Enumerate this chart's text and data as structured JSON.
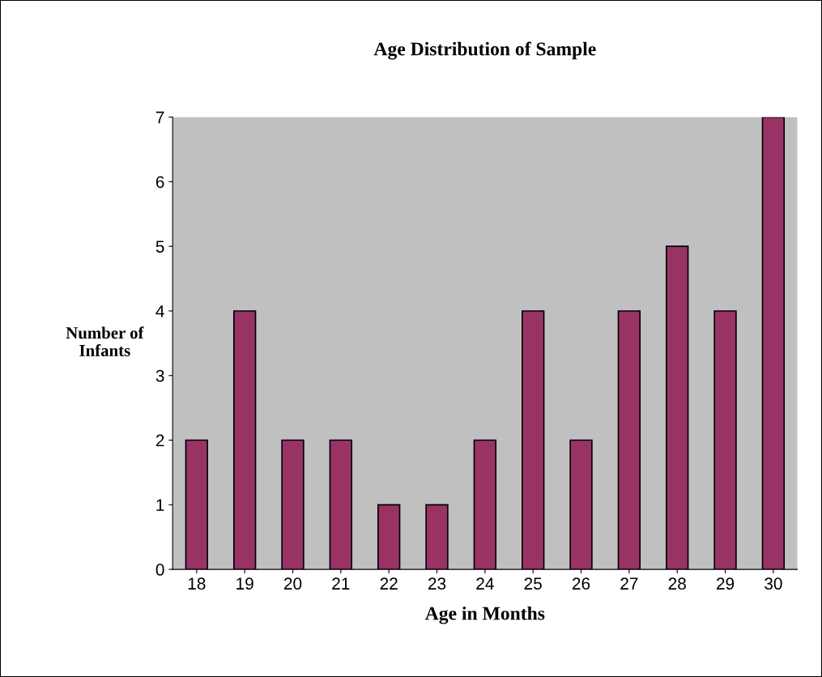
{
  "chart_data": {
    "type": "bar",
    "title": "Age Distribution of Sample",
    "xlabel": "Age in Months",
    "ylabel": "Number of\nInfants",
    "categories": [
      "18",
      "19",
      "20",
      "21",
      "22",
      "23",
      "24",
      "25",
      "26",
      "27",
      "28",
      "29",
      "30"
    ],
    "values": [
      2,
      4,
      2,
      2,
      1,
      1,
      2,
      4,
      2,
      4,
      5,
      4,
      7
    ],
    "color": "#993366",
    "ylim": [
      0,
      7
    ],
    "yticks": [
      0,
      1,
      2,
      3,
      4,
      5,
      6,
      7
    ],
    "grid": false,
    "legend": false
  }
}
